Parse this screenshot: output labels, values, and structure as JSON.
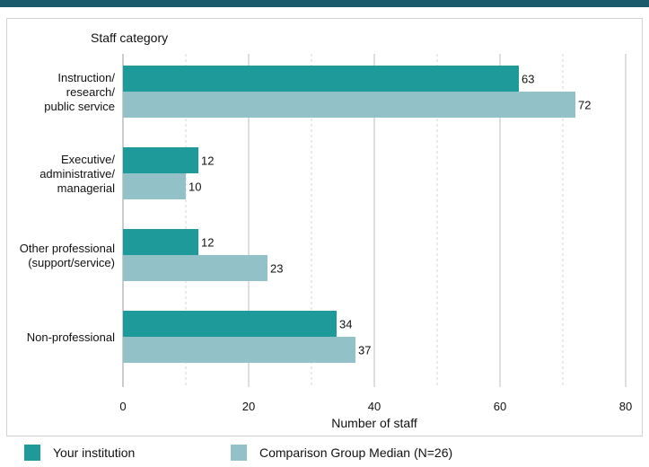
{
  "chart_data": {
    "type": "bar",
    "orientation": "horizontal",
    "title": "Staff category",
    "xlabel": "Number of staff",
    "xlim": [
      0,
      80
    ],
    "xticks": [
      0,
      20,
      40,
      60,
      80
    ],
    "grid": true,
    "legend_position": "bottom",
    "categories": [
      "Instruction/\nresearch/\npublic service",
      "Executive/\nadministrative/\nmanagerial",
      "Other professional\n(support/service)",
      "Non-professional"
    ],
    "series": [
      {
        "name": "Your institution",
        "color": "#1e9a9a",
        "values": [
          63,
          12,
          12,
          34
        ]
      },
      {
        "name": "Comparison Group Median (N=26)",
        "color": "#92c1c7",
        "values": [
          72,
          10,
          23,
          37
        ]
      }
    ]
  }
}
